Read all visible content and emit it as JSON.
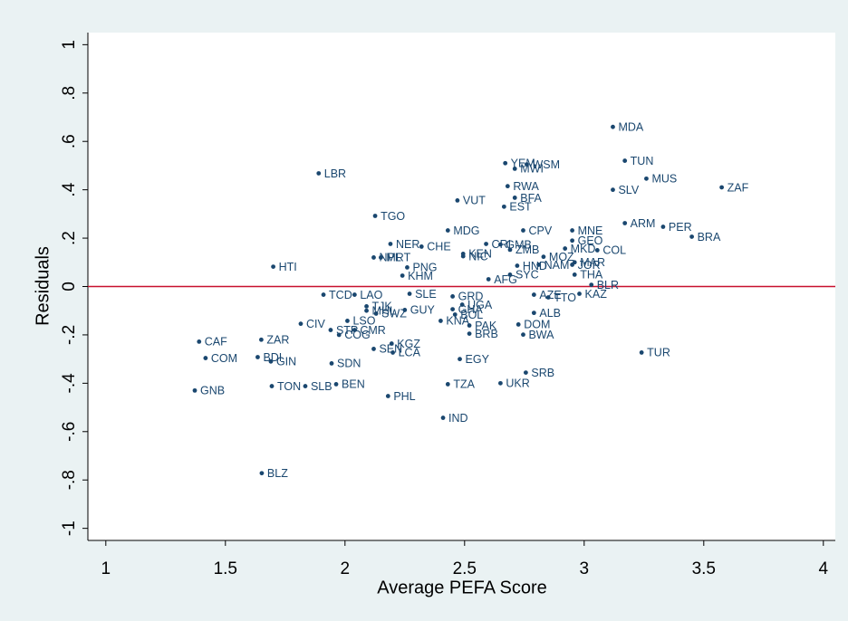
{
  "chart_data": {
    "type": "scatter",
    "x_label": "Average PEFA Score",
    "y_label": "Residuals",
    "color": "#1a476f",
    "hline": 0,
    "hline_color": "#c8102e",
    "xlim": [
      0.925,
      4.05
    ],
    "ylim": [
      -1.05,
      1.05
    ],
    "xticks": [
      1,
      1.5,
      2,
      2.5,
      3,
      3.5,
      4
    ],
    "yticks": [
      -1,
      {
        "value": -0.8,
        "label": "-.8"
      },
      {
        "value": -0.6,
        "label": "-.6"
      },
      {
        "value": -0.4,
        "label": "-.4"
      },
      {
        "value": -0.2,
        "label": "-.2"
      },
      0,
      {
        "value": 0.2,
        "label": ".2"
      },
      {
        "value": 0.4,
        "label": ".4"
      },
      {
        "value": 0.6,
        "label": ".6"
      },
      {
        "value": 0.8,
        "label": ".8"
      },
      1
    ],
    "labels": [
      "MDA",
      "TUN",
      "MUS",
      "ZAF",
      "SLV",
      "YEM",
      "WSM",
      "MWI",
      "RWA",
      "BFA",
      "VUT",
      "EST",
      "LBR",
      "TGO",
      "MDG",
      "CPV",
      "MNE",
      "ARM",
      "PER",
      "BRA",
      "GEO",
      "MKD",
      "COL",
      "NER",
      "CHE",
      "CRI",
      "GMB",
      "ZMB",
      "KEN",
      "NIC",
      "NPL",
      "MRT",
      "MOZ",
      "HND",
      "NAM",
      "MAR",
      "JOR",
      "PNG",
      "HTI",
      "THA",
      "KHM",
      "AFG",
      "SYC",
      "BLR",
      "KAZ",
      "TTO",
      "AZE",
      "TCD",
      "LAO",
      "SLE",
      "GRD",
      "TJK",
      "UGA",
      "GHA",
      "MHL",
      "SWZ",
      "GUY",
      "BOL",
      "ALB",
      "KNA",
      "CIV",
      "LSO",
      "DOM",
      "PAK",
      "STP",
      "CMR",
      "COG",
      "BRB",
      "BWA",
      "ZAR",
      "CAF",
      "KGZ",
      "SEN",
      "LCA",
      "TUR",
      "COM",
      "BDI",
      "GIN",
      "SDN",
      "EGY",
      "SRB",
      "BEN",
      "SLB",
      "TON",
      "TZA",
      "UKR",
      "GNB",
      "PHL",
      "IND",
      "BLZ"
    ],
    "x": [
      3.12,
      3.17,
      3.26,
      3.575,
      3.12,
      2.67,
      2.76,
      2.71,
      2.68,
      2.71,
      2.47,
      2.665,
      1.89,
      2.126,
      2.43,
      2.745,
      2.95,
      3.17,
      3.33,
      3.45,
      2.95,
      2.92,
      3.055,
      2.19,
      2.32,
      2.59,
      2.65,
      2.69,
      2.494,
      2.494,
      2.12,
      2.15,
      2.83,
      2.72,
      2.81,
      2.96,
      2.95,
      2.26,
      1.7,
      2.96,
      2.24,
      2.6,
      2.69,
      3.03,
      2.98,
      2.85,
      2.79,
      1.91,
      2.04,
      2.27,
      2.45,
      2.09,
      2.49,
      2.45,
      2.09,
      2.13,
      2.25,
      2.46,
      2.79,
      2.4,
      1.815,
      2.01,
      2.725,
      2.52,
      1.94,
      2.04,
      1.975,
      2.52,
      2.745,
      1.65,
      1.39,
      2.195,
      2.12,
      2.2,
      3.24,
      1.417,
      1.635,
      1.69,
      1.944,
      2.48,
      2.756,
      1.963,
      1.834,
      1.694,
      2.43,
      2.65,
      1.372,
      2.18,
      2.41,
      1.652
    ],
    "values": [
      0.66,
      0.52,
      0.446,
      0.41,
      0.4,
      0.51,
      0.505,
      0.487,
      0.415,
      0.367,
      0.356,
      0.33,
      0.468,
      0.292,
      0.232,
      0.232,
      0.232,
      0.262,
      0.247,
      0.206,
      0.19,
      0.157,
      0.15,
      0.176,
      0.165,
      0.176,
      0.174,
      0.152,
      0.135,
      0.125,
      0.12,
      0.12,
      0.123,
      0.086,
      0.09,
      0.1,
      0.09,
      0.079,
      0.082,
      0.049,
      0.045,
      0.03,
      0.049,
      0.007,
      -0.03,
      -0.045,
      -0.034,
      -0.034,
      -0.034,
      -0.03,
      -0.041,
      -0.082,
      -0.075,
      -0.094,
      -0.1,
      -0.112,
      -0.097,
      -0.116,
      -0.109,
      -0.142,
      -0.154,
      -0.142,
      -0.157,
      -0.161,
      -0.18,
      -0.18,
      -0.2,
      -0.195,
      -0.199,
      -0.22,
      -0.228,
      -0.236,
      -0.258,
      -0.273,
      -0.273,
      -0.296,
      -0.292,
      -0.31,
      -0.318,
      -0.3,
      -0.356,
      -0.404,
      -0.412,
      -0.412,
      -0.404,
      -0.4,
      -0.43,
      -0.453,
      -0.543,
      -0.772
    ]
  }
}
